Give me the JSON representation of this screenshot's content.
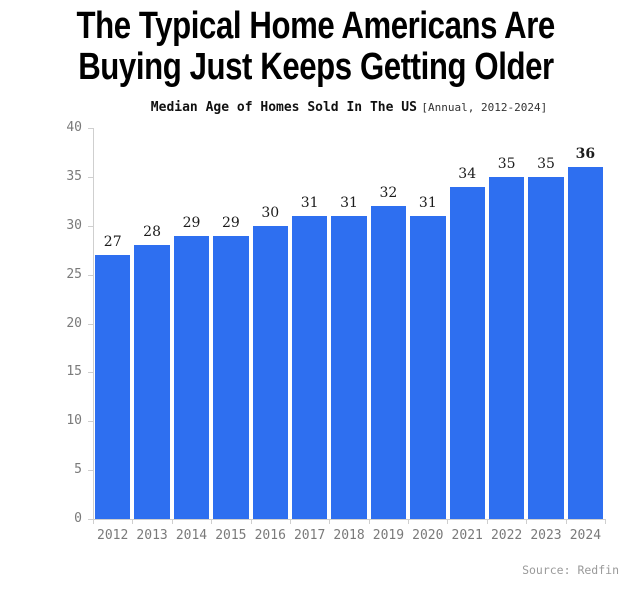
{
  "header": {
    "title_line1": "The Typical Home Americans Are",
    "title_line2": "Buying Just Keeps Getting Older",
    "subtitle_main": "Median Age of Homes Sold In The US",
    "subtitle_note": "[Annual, 2012-2024]"
  },
  "footer": {
    "source": "Source: Redfin"
  },
  "colors": {
    "bar": "#2e6ff0",
    "axis": "#cfcfcf",
    "axis_tick_label": "#7a7a7a",
    "value_label": "#1c1c1c",
    "title": "#000000",
    "source_text": "#9a9a9a"
  },
  "chart_data": {
    "type": "bar",
    "title": "Median Age of Homes Sold In The US",
    "subtitle_note": "[Annual, 2012-2024]",
    "categories": [
      "2012",
      "2013",
      "2014",
      "2015",
      "2016",
      "2017",
      "2018",
      "2019",
      "2020",
      "2021",
      "2022",
      "2023",
      "2024"
    ],
    "values": [
      27,
      28,
      29,
      29,
      30,
      31,
      31,
      32,
      31,
      34,
      35,
      35,
      36
    ],
    "xlabel": "",
    "ylabel": "",
    "ylim": [
      0,
      40
    ],
    "yticks": [
      0,
      5,
      10,
      15,
      20,
      25,
      30,
      35,
      40
    ],
    "grid": false,
    "legend": "none",
    "bar_color": "#2e6ff0",
    "value_labels_shown": true,
    "last_value_bold": true,
    "source": "Source: Redfin"
  }
}
